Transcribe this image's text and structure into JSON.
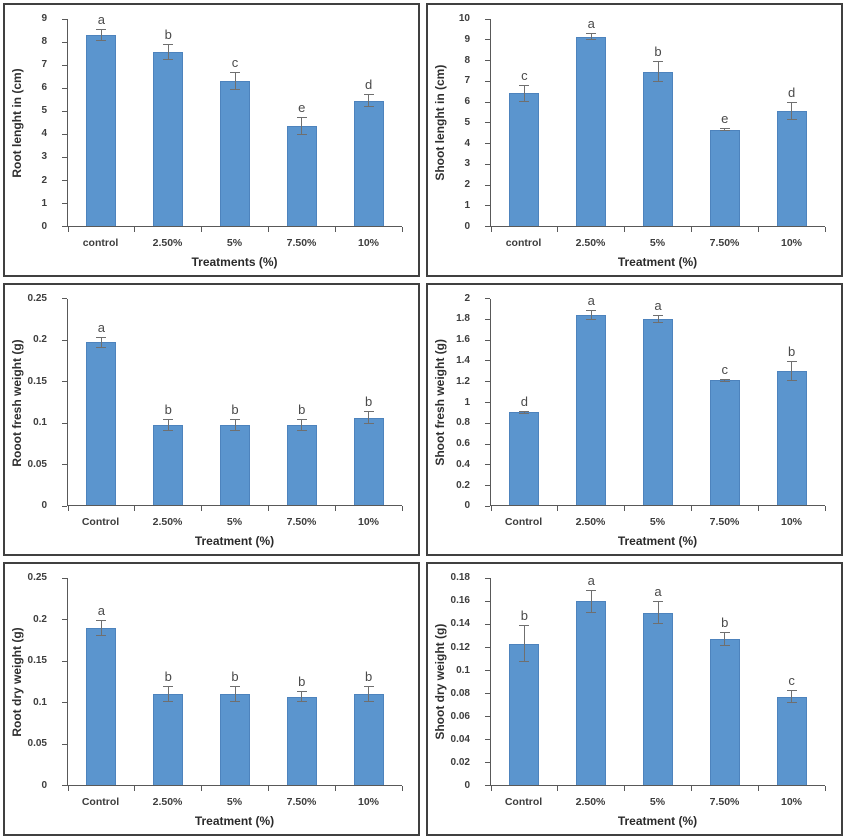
{
  "figure": {
    "description_colors": {
      "bar_color": "#5b95ce",
      "bar_border_color": "#4d83bd",
      "axis_color": "#595959",
      "panel_border_color": "#404040",
      "error_bar_color": "#6f6f6f",
      "text_color": "#3d3d3d"
    }
  },
  "chart_data": [
    {
      "type": "bar",
      "ylabel": "Root lenght in (cm)",
      "xlabel": "Treatments (%)",
      "categories": [
        "control",
        "2.50%",
        "5%",
        "7.50%",
        "10%"
      ],
      "values": [
        8.3,
        7.55,
        6.3,
        4.35,
        5.45
      ],
      "errors": [
        0.25,
        0.35,
        0.4,
        0.4,
        0.3
      ],
      "letters": [
        "a",
        "b",
        "c",
        "e",
        "d"
      ],
      "ylim": [
        0,
        9
      ],
      "yticks": [
        "0",
        "1",
        "2",
        "3",
        "4",
        "5",
        "6",
        "7",
        "8",
        "9"
      ],
      "grid": false,
      "legend": false
    },
    {
      "type": "bar",
      "ylabel": "Shoot lenght in (cm)",
      "xlabel": "Treatment (%)",
      "categories": [
        "control",
        "2.50%",
        "5%",
        "7.50%",
        "10%"
      ],
      "values": [
        6.4,
        9.15,
        7.45,
        4.65,
        5.55
      ],
      "errors": [
        0.4,
        0.15,
        0.5,
        0.07,
        0.45
      ],
      "letters": [
        "c",
        "a",
        "b",
        "e",
        "d"
      ],
      "ylim": [
        0,
        10
      ],
      "yticks": [
        "0",
        "1",
        "2",
        "3",
        "4",
        "5",
        "6",
        "7",
        "8",
        "9",
        "10"
      ],
      "grid": false,
      "legend": false
    },
    {
      "type": "bar",
      "ylabel": "Rooot fresh weight (g)",
      "xlabel": "Treatment (%)",
      "categories": [
        "Control",
        "2.50%",
        "5%",
        "7.50%",
        "10%"
      ],
      "values": [
        0.197,
        0.097,
        0.097,
        0.097,
        0.106
      ],
      "errors": [
        0.007,
        0.007,
        0.007,
        0.007,
        0.008
      ],
      "letters": [
        "a",
        "b",
        "b",
        "b",
        "b"
      ],
      "ylim": [
        0,
        0.25
      ],
      "yticks": [
        "0",
        "0.05",
        "0.1",
        "0.15",
        "0.2",
        "0.25"
      ],
      "grid": false,
      "legend": false
    },
    {
      "type": "bar",
      "ylabel": "Shoot fresh weight (g)",
      "xlabel": "Treatment (%)",
      "categories": [
        "Control",
        "2.50%",
        "5%",
        "7.50%",
        "10%"
      ],
      "values": [
        0.9,
        1.84,
        1.8,
        1.21,
        1.3
      ],
      "errors": [
        0.015,
        0.05,
        0.04,
        0.015,
        0.1
      ],
      "letters": [
        "d",
        "a",
        "a",
        "c",
        "b"
      ],
      "ylim": [
        0,
        2
      ],
      "yticks": [
        "0",
        "0.2",
        "0.4",
        "0.6",
        "0.8",
        "1",
        "1.2",
        "1.4",
        "1.6",
        "1.8",
        "2"
      ],
      "grid": false,
      "legend": false
    },
    {
      "type": "bar",
      "ylabel": "Root dry weight (g)",
      "xlabel": "Treatment (%)",
      "categories": [
        "Control",
        "2.50%",
        "5%",
        "7.50%",
        "10%"
      ],
      "values": [
        0.19,
        0.11,
        0.11,
        0.107,
        0.11
      ],
      "errors": [
        0.01,
        0.01,
        0.01,
        0.007,
        0.01
      ],
      "letters": [
        "a",
        "b",
        "b",
        "b",
        "b"
      ],
      "ylim": [
        0,
        0.25
      ],
      "yticks": [
        "0",
        "0.05",
        "0.1",
        "0.15",
        "0.2",
        "0.25"
      ],
      "grid": false,
      "legend": false
    },
    {
      "type": "bar",
      "ylabel": "Shoot dry weight (g)",
      "xlabel": "Treatment (%)",
      "categories": [
        "Control",
        "2.50%",
        "5%",
        "7.50%",
        "10%"
      ],
      "values": [
        0.123,
        0.16,
        0.15,
        0.127,
        0.077
      ],
      "errors": [
        0.016,
        0.01,
        0.01,
        0.006,
        0.006
      ],
      "letters": [
        "b",
        "a",
        "a",
        "b",
        "c"
      ],
      "ylim": [
        0,
        0.18
      ],
      "yticks": [
        "0",
        "0.02",
        "0.04",
        "0.06",
        "0.08",
        "0.1",
        "0.12",
        "0.14",
        "0.16",
        "0.18"
      ],
      "grid": false,
      "legend": false
    }
  ]
}
